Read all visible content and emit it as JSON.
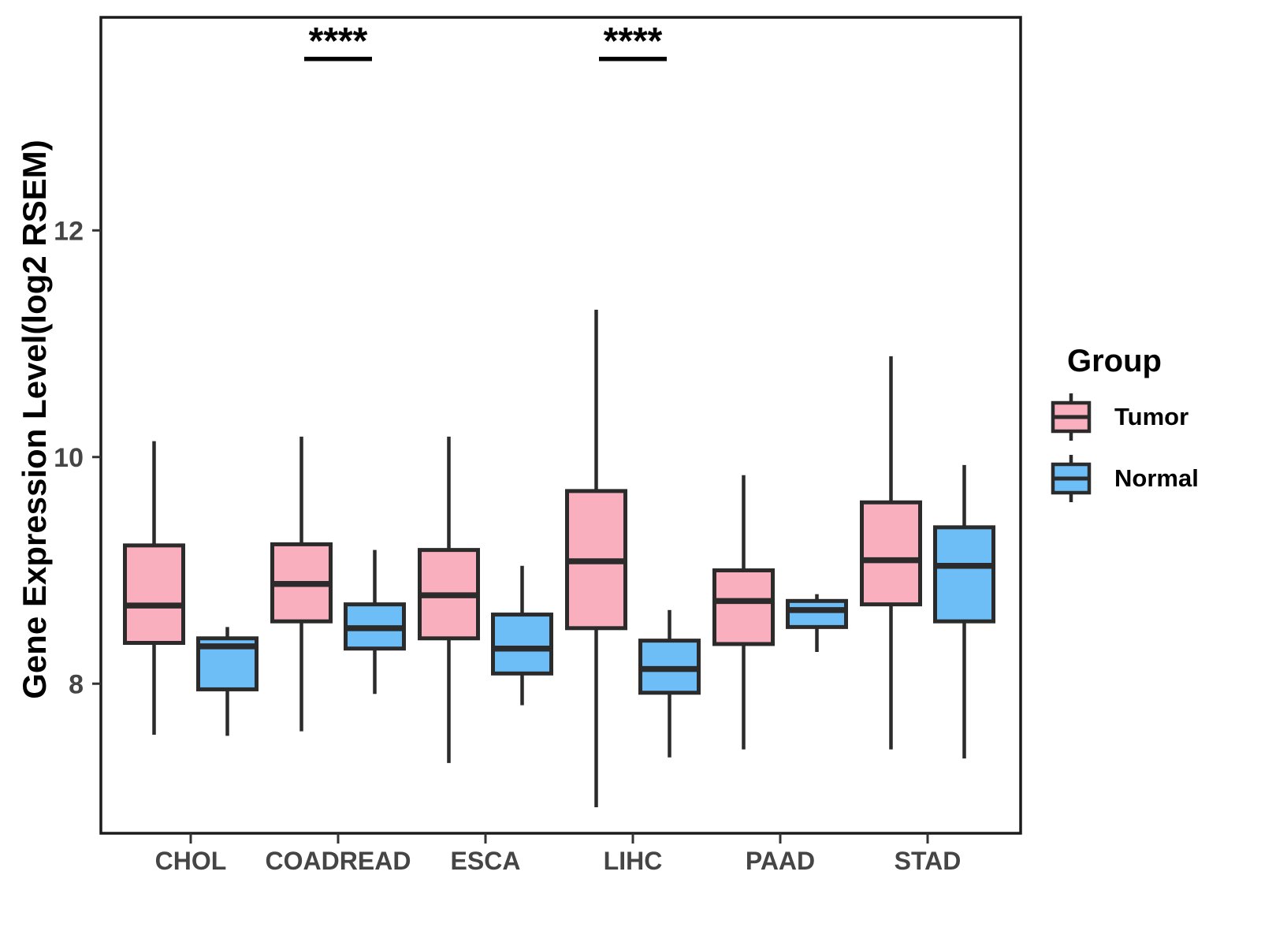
{
  "y_axis": {
    "title": "Gene Expression Level(log2 RSEM)"
  },
  "legend": {
    "title": "Group",
    "items": [
      {
        "label": "Tumor",
        "color": "#FAAFBE"
      },
      {
        "label": "Normal",
        "color": "#6DBEF6"
      }
    ]
  },
  "style": {
    "box_border_color": "#2B2B2B",
    "panel_border_color": "#1B1B1B",
    "tick_label_color": "#454545",
    "significance_color": "#000000"
  },
  "chart_data": {
    "type": "boxplot",
    "title": "",
    "xlabel": "",
    "ylabel": "Gene Expression Level(log2 RSEM)",
    "categories": [
      "CHOL",
      "COADREAD",
      "ESCA",
      "LIHC",
      "PAAD",
      "STAD"
    ],
    "y_ticks": [
      8,
      10,
      12
    ],
    "ylim": [
      6.68,
      13.88
    ],
    "grid": false,
    "legend_position": "right",
    "series": [
      {
        "name": "Tumor",
        "fill": "#FAAFBE",
        "boxes": [
          {
            "category": "CHOL",
            "low": 7.55,
            "q1": 8.36,
            "median": 8.69,
            "q3": 9.22,
            "high": 10.14
          },
          {
            "category": "COADREAD",
            "low": 7.58,
            "q1": 8.55,
            "median": 8.88,
            "q3": 9.23,
            "high": 10.18
          },
          {
            "category": "ESCA",
            "low": 7.3,
            "q1": 8.4,
            "median": 8.78,
            "q3": 9.18,
            "high": 10.18
          },
          {
            "category": "LIHC",
            "low": 6.91,
            "q1": 8.49,
            "median": 9.08,
            "q3": 9.7,
            "high": 11.3
          },
          {
            "category": "PAAD",
            "low": 7.42,
            "q1": 8.35,
            "median": 8.73,
            "q3": 9.0,
            "high": 9.84
          },
          {
            "category": "STAD",
            "low": 7.42,
            "q1": 8.7,
            "median": 9.09,
            "q3": 9.6,
            "high": 10.89
          }
        ]
      },
      {
        "name": "Normal",
        "fill": "#6DBEF6",
        "boxes": [
          {
            "category": "CHOL",
            "low": 7.54,
            "q1": 7.95,
            "median": 8.33,
            "q3": 8.4,
            "high": 8.5
          },
          {
            "category": "COADREAD",
            "low": 7.91,
            "q1": 8.31,
            "median": 8.49,
            "q3": 8.7,
            "high": 9.18
          },
          {
            "category": "ESCA",
            "low": 7.81,
            "q1": 8.09,
            "median": 8.31,
            "q3": 8.61,
            "high": 9.04
          },
          {
            "category": "LIHC",
            "low": 7.35,
            "q1": 7.92,
            "median": 8.13,
            "q3": 8.38,
            "high": 8.65
          },
          {
            "category": "PAAD",
            "low": 8.28,
            "q1": 8.5,
            "median": 8.65,
            "q3": 8.73,
            "high": 8.79
          },
          {
            "category": "STAD",
            "low": 7.34,
            "q1": 8.55,
            "median": 9.04,
            "q3": 9.38,
            "high": 9.93
          }
        ]
      }
    ],
    "significance": [
      {
        "category": "COADREAD",
        "label": "****"
      },
      {
        "category": "LIHC",
        "label": "****"
      }
    ]
  }
}
